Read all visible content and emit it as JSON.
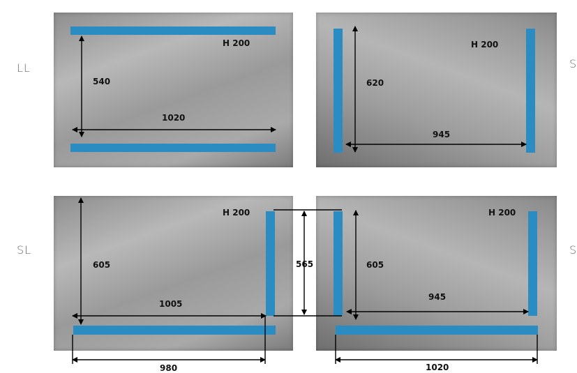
{
  "panels": [
    {
      "side_label": "LL",
      "height_label": "H 200",
      "vertical_dim": "540",
      "horizontal_dim": "1020"
    },
    {
      "side_label": "S",
      "height_label": "H 200",
      "vertical_dim": "620",
      "horizontal_dim": "945"
    },
    {
      "side_label": "SL",
      "height_label": "H 200",
      "vertical_dim": "605",
      "horizontal_dim": "1005",
      "bottom_dim": "980"
    },
    {
      "side_label": "Sl",
      "height_label": "H 200",
      "vertical_dim": "605",
      "horizontal_dim": "945",
      "bottom_dim": "1020"
    }
  ],
  "gap_dim": "565",
  "colors": {
    "bar": "#2a8cc0",
    "dimension_line": "#000000"
  }
}
